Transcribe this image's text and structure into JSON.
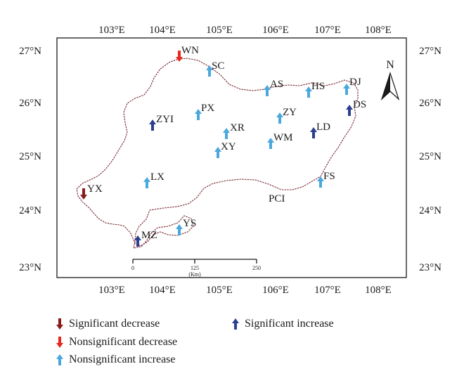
{
  "map": {
    "lon_ticks": [
      "103°E",
      "104°E",
      "105°E",
      "106°E",
      "107°E",
      "108°E"
    ],
    "lat_ticks": [
      "27°N",
      "26°N",
      "25°N",
      "24°N",
      "23°N"
    ],
    "north_label": "N",
    "scale_bar": {
      "ticks": [
        "0",
        "125",
        "250"
      ],
      "unit": "(Km)"
    }
  },
  "colors": {
    "significant_decrease": "#8b1a1a",
    "nonsignificant_decrease": "#e8281e",
    "nonsignificant_increase": "#4aa8dd",
    "significant_increase": "#2b3f8f"
  },
  "stations": [
    {
      "name": "WN",
      "trend": "nonsignificant_decrease"
    },
    {
      "name": "SC",
      "trend": "nonsignificant_increase"
    },
    {
      "name": "AS",
      "trend": "nonsignificant_increase"
    },
    {
      "name": "HS",
      "trend": "nonsignificant_increase"
    },
    {
      "name": "DJ",
      "trend": "nonsignificant_increase"
    },
    {
      "name": "DS",
      "trend": "significant_increase"
    },
    {
      "name": "PX",
      "trend": "nonsignificant_increase"
    },
    {
      "name": "ZY",
      "trend": "nonsignificant_increase"
    },
    {
      "name": "ZYI",
      "trend": "significant_increase"
    },
    {
      "name": "XR",
      "trend": "nonsignificant_increase"
    },
    {
      "name": "LD",
      "trend": "significant_increase"
    },
    {
      "name": "WM",
      "trend": "nonsignificant_increase"
    },
    {
      "name": "XY",
      "trend": "nonsignificant_increase"
    },
    {
      "name": "LX",
      "trend": "nonsignificant_increase"
    },
    {
      "name": "FS",
      "trend": "nonsignificant_increase"
    },
    {
      "name": "YX",
      "trend": "significant_decrease"
    },
    {
      "name": "PCI",
      "trend": "none"
    },
    {
      "name": "YS",
      "trend": "nonsignificant_increase"
    },
    {
      "name": "MZ",
      "trend": "significant_increase"
    }
  ],
  "legend": {
    "significant_decrease": "Significant decrease",
    "nonsignificant_decrease": "Nonsignificant decrease",
    "nonsignificant_increase": "Nonsignificant increase",
    "significant_increase": "Significant increase"
  }
}
